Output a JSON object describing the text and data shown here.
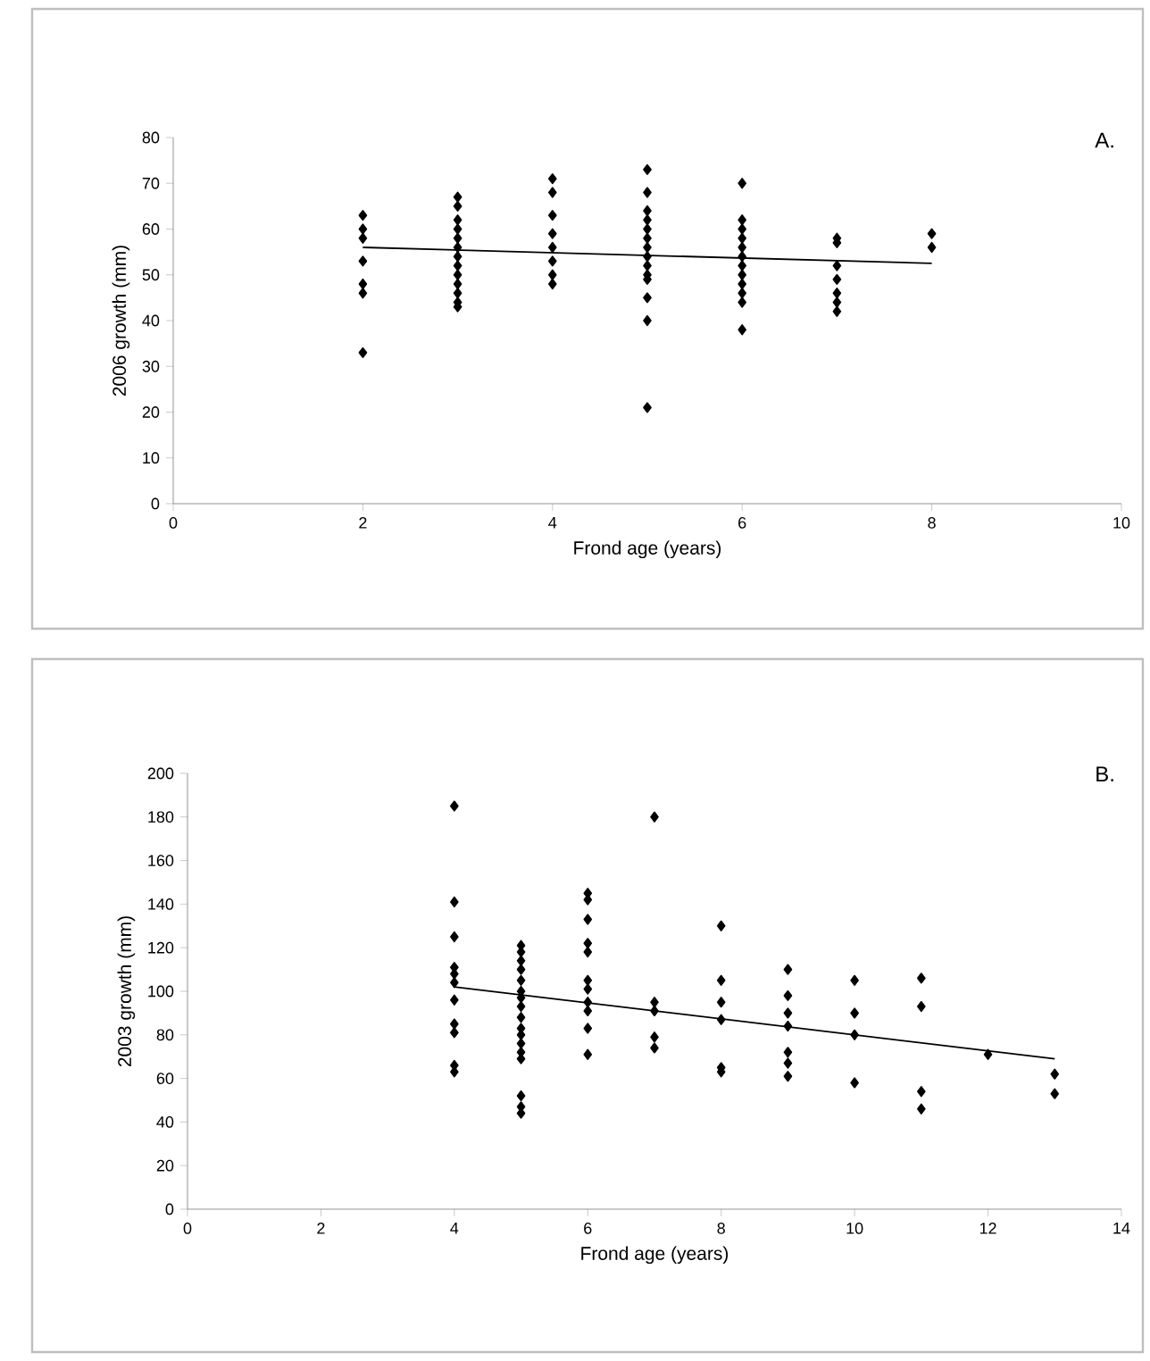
{
  "chart_data": [
    {
      "type": "scatter",
      "xlabel": "Frond age (years)",
      "ylabel": "2006 growth (mm)",
      "annotations": [
        "A."
      ],
      "xlim": [
        0,
        10
      ],
      "ylim": [
        0,
        80
      ],
      "xticks": [
        0,
        2,
        4,
        6,
        8,
        10
      ],
      "yticks": [
        0,
        10,
        20,
        30,
        40,
        50,
        60,
        70,
        80
      ],
      "marker": "diamond",
      "series": [
        {
          "color": "#000000",
          "x": [
            2,
            2,
            2,
            2,
            2,
            2,
            2,
            3,
            3,
            3,
            3,
            3,
            3,
            3,
            3,
            3,
            3,
            3,
            3,
            3,
            4,
            4,
            4,
            4,
            4,
            4,
            4,
            4,
            5,
            5,
            5,
            5,
            5,
            5,
            5,
            5,
            5,
            5,
            5,
            5,
            5,
            5,
            6,
            6,
            6,
            6,
            6,
            6,
            6,
            6,
            6,
            6,
            6,
            6,
            7,
            7,
            7,
            7,
            7,
            7,
            7,
            8,
            8
          ],
          "values": [
            63,
            60,
            58,
            53,
            48,
            46,
            33,
            67,
            65,
            62,
            60,
            58,
            56,
            54,
            52,
            50,
            48,
            46,
            44,
            43,
            71,
            68,
            63,
            59,
            56,
            53,
            50,
            48,
            73,
            68,
            64,
            62,
            60,
            58,
            56,
            54,
            52,
            50,
            49,
            45,
            40,
            21,
            70,
            62,
            60,
            58,
            56,
            54,
            52,
            50,
            48,
            46,
            44,
            38,
            58,
            57,
            52,
            49,
            46,
            44,
            42,
            59,
            56
          ]
        },
        {
          "type": "line",
          "color": "#000000",
          "marker": "none",
          "x": [
            2,
            8
          ],
          "values": [
            56,
            52.5
          ]
        }
      ]
    },
    {
      "type": "scatter",
      "xlabel": "Frond age (years)",
      "ylabel": "2003 growth (mm)",
      "annotations": [
        "B."
      ],
      "xlim": [
        0,
        14
      ],
      "ylim": [
        0,
        200
      ],
      "xticks": [
        0,
        2,
        4,
        6,
        8,
        10,
        12,
        14
      ],
      "yticks": [
        0,
        20,
        40,
        60,
        80,
        100,
        120,
        140,
        160,
        180,
        200
      ],
      "marker": "diamond",
      "series": [
        {
          "color": "#000000",
          "x": [
            4,
            4,
            4,
            4,
            4,
            4,
            4,
            4,
            4,
            4,
            4,
            5,
            5,
            5,
            5,
            5,
            5,
            5,
            5,
            5,
            5,
            5,
            5,
            5,
            5,
            5,
            5,
            5,
            6,
            6,
            6,
            6,
            6,
            6,
            6,
            6,
            6,
            6,
            6,
            7,
            7,
            7,
            7,
            7,
            8,
            8,
            8,
            8,
            8,
            8,
            9,
            9,
            9,
            9,
            9,
            9,
            9,
            10,
            10,
            10,
            10,
            11,
            11,
            11,
            11,
            12,
            13,
            13
          ],
          "values": [
            185,
            141,
            125,
            111,
            108,
            104,
            96,
            85,
            81,
            66,
            63,
            121,
            118,
            114,
            110,
            105,
            100,
            97,
            93,
            88,
            83,
            80,
            76,
            72,
            69,
            52,
            47,
            44,
            145,
            142,
            133,
            122,
            118,
            105,
            101,
            95,
            91,
            83,
            71,
            180,
            95,
            91,
            79,
            74,
            130,
            105,
            95,
            87,
            65,
            63,
            110,
            98,
            90,
            84,
            72,
            67,
            61,
            105,
            90,
            80,
            58,
            106,
            93,
            54,
            46,
            71,
            62,
            53
          ]
        },
        {
          "type": "line",
          "color": "#000000",
          "marker": "none",
          "x": [
            4,
            13
          ],
          "values": [
            102,
            69
          ]
        }
      ]
    }
  ]
}
